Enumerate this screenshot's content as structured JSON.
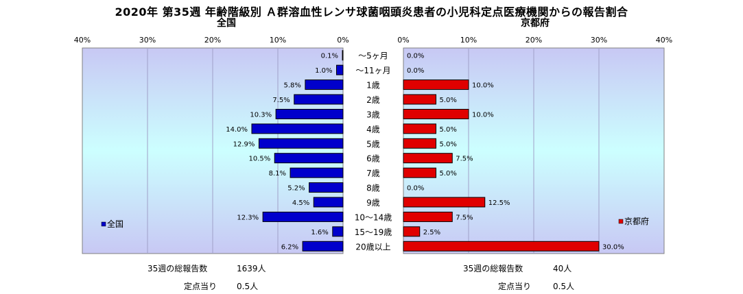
{
  "title": "2020年 第35週 年齢階級別 Ａ群溶血性レンサ球菌咽頭炎患者の小児科定点医療機関からの報告割合",
  "left_chart_title": "全国",
  "right_chart_title": "京都府",
  "colors": {
    "zenkoku": "#0000cc",
    "kyoto": "#e00000",
    "plot_bg_top": "#c8c8f4",
    "plot_bg_mid": "#ccffff",
    "plot_bg_bottom": "#c8c8f4"
  },
  "footer": {
    "left_total_label": "35週の総報告数",
    "left_total_value": "1639人",
    "left_per_label": "定点当り",
    "left_per_value": "0.5人",
    "right_total_label": "35週の総報告数",
    "right_total_value": "40人",
    "right_per_label": "定点当り",
    "right_per_value": "0.5人"
  },
  "chart_data": [
    {
      "type": "bar",
      "orientation": "horizontal",
      "direction": "reversed",
      "title": "全国",
      "categories": [
        "～5ヶ月",
        "～11ヶ月",
        "1歳",
        "2歳",
        "3歳",
        "4歳",
        "5歳",
        "6歳",
        "7歳",
        "8歳",
        "9歳",
        "10～14歳",
        "15～19歳",
        "20歳以上"
      ],
      "series": [
        {
          "name": "全国",
          "values": [
            0.1,
            1.0,
            5.8,
            7.5,
            10.3,
            14.0,
            12.9,
            10.5,
            8.1,
            5.2,
            4.5,
            12.3,
            1.6,
            6.2
          ],
          "labels": [
            "0.1%",
            "1.0%",
            "5.8%",
            "7.5%",
            "10.3%",
            "14.0%",
            "12.9%",
            "10.5%",
            "8.1%",
            "5.2%",
            "4.5%",
            "12.3%",
            "1.6%",
            "6.2%"
          ]
        }
      ],
      "xlim": [
        0,
        40
      ],
      "ticks": [
        "40%",
        "30%",
        "20%",
        "10%",
        "0%"
      ],
      "grid": true,
      "legend": "bottom-left"
    },
    {
      "type": "bar",
      "orientation": "horizontal",
      "title": "京都府",
      "categories": [
        "～5ヶ月",
        "～11ヶ月",
        "1歳",
        "2歳",
        "3歳",
        "4歳",
        "5歳",
        "6歳",
        "7歳",
        "8歳",
        "9歳",
        "10～14歳",
        "15～19歳",
        "20歳以上"
      ],
      "series": [
        {
          "name": "京都府",
          "values": [
            0.0,
            0.0,
            10.0,
            5.0,
            10.0,
            5.0,
            5.0,
            7.5,
            5.0,
            0.0,
            12.5,
            7.5,
            2.5,
            30.0
          ],
          "labels": [
            "0.0%",
            "0.0%",
            "10.0%",
            "5.0%",
            "10.0%",
            "5.0%",
            "5.0%",
            "7.5%",
            "5.0%",
            "0.0%",
            "12.5%",
            "7.5%",
            "2.5%",
            "30.0%"
          ]
        }
      ],
      "xlim": [
        0,
        40
      ],
      "ticks": [
        "0%",
        "10%",
        "20%",
        "30%",
        "40%"
      ],
      "grid": true,
      "legend": "bottom-right"
    }
  ]
}
